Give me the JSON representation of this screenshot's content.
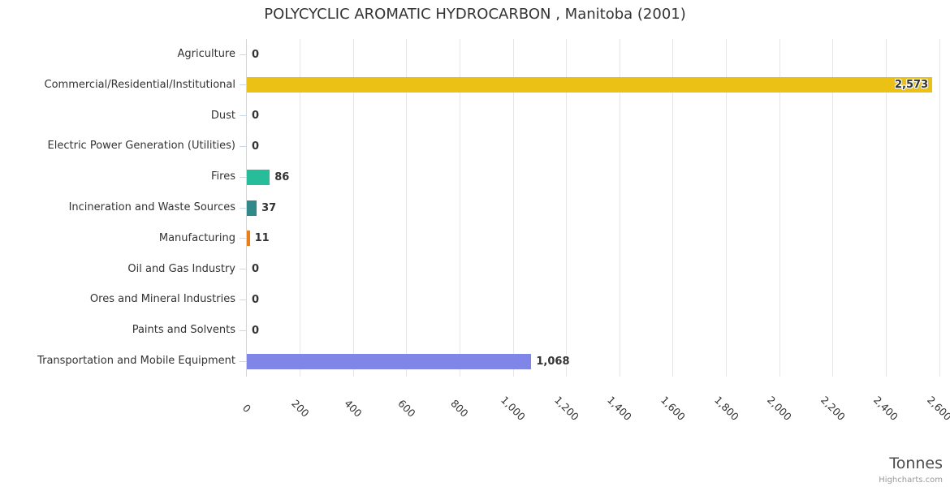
{
  "title": "POLYCYCLIC AROMATIC HYDROCARBON , Manitoba (2001)",
  "credits": "Highcharts.com",
  "chart_data": {
    "type": "bar",
    "orientation": "horizontal",
    "title": "POLYCYCLIC AROMATIC HYDROCARBON , Manitoba (2001)",
    "xlabel": "Tonnes",
    "ylabel": "",
    "xlim": [
      0,
      2600
    ],
    "grid": true,
    "legend": false,
    "categories": [
      "Agriculture",
      "Commercial/Residential/Institutional",
      "Dust",
      "Electric Power Generation (Utilities)",
      "Fires",
      "Incineration and Waste Sources",
      "Manufacturing",
      "Oil and Gas Industry",
      "Ores and Mineral Industries",
      "Paints and Solvents",
      "Transportation and Mobile Equipment"
    ],
    "values": [
      0,
      2573,
      0,
      0,
      86,
      37,
      11,
      0,
      0,
      0,
      1068
    ],
    "value_labels": [
      "0",
      "2,573",
      "0",
      "0",
      "86",
      "37",
      "11",
      "0",
      "0",
      "0",
      "1,068"
    ],
    "bar_colors": [
      null,
      "#ecc115",
      null,
      null,
      "#27bd9a",
      "#31898a",
      "#ed7d17",
      null,
      null,
      null,
      "#8085e8"
    ],
    "label_inside": [
      false,
      true,
      false,
      false,
      false,
      false,
      false,
      false,
      false,
      false,
      false
    ],
    "x_ticks": [
      0,
      200,
      400,
      600,
      800,
      1000,
      1200,
      1400,
      1600,
      1800,
      2000,
      2200,
      2400,
      2600
    ],
    "x_tick_labels": [
      "0",
      "200",
      "400",
      "600",
      "800",
      "1,000",
      "1,200",
      "1,400",
      "1,600",
      "1,800",
      "2,000",
      "2,200",
      "2,400",
      "2,600"
    ]
  },
  "style": {
    "background": "#ffffff",
    "grid_color": "#e6e6e6",
    "axis_line_color": "#ccd6eb",
    "text_color": "#333333",
    "axis_title_color": "#4a4a4a",
    "credits_color": "#999999"
  }
}
